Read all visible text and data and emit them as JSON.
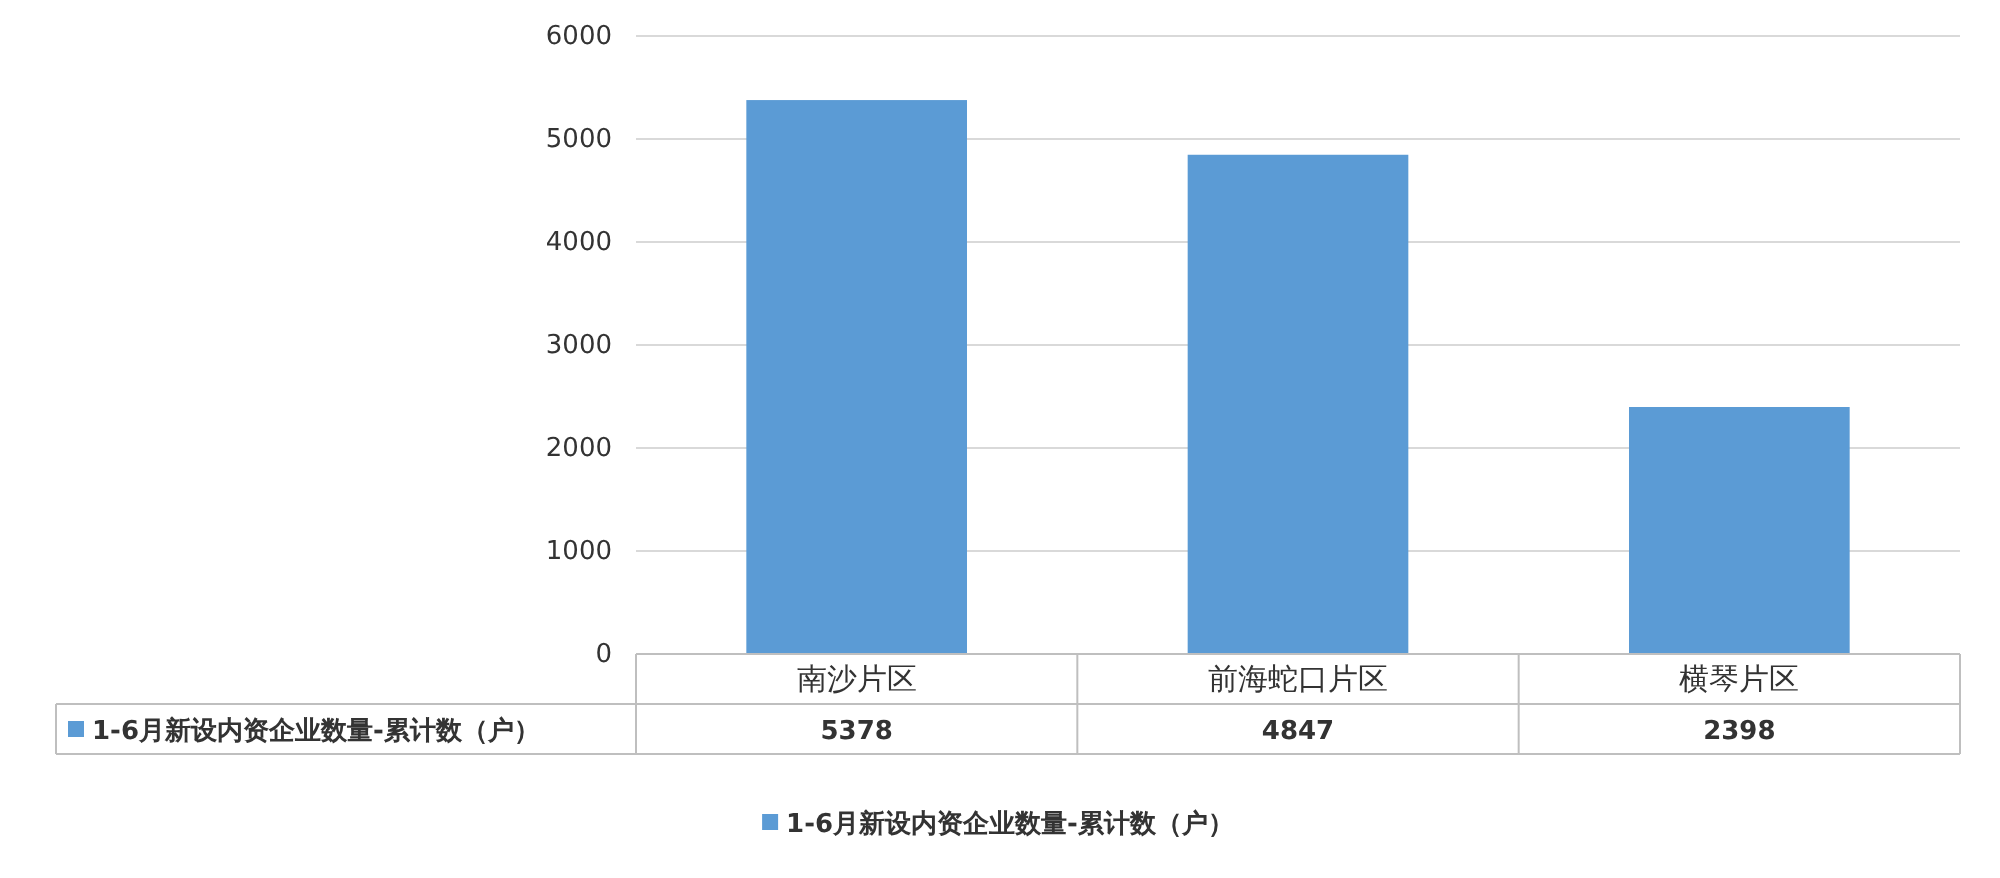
{
  "chart_data": {
    "type": "bar",
    "categories": [
      "南沙片区",
      "前海蛇口片区",
      "横琴片区"
    ],
    "series": [
      {
        "name": "1-6月新设内资企业数量-累计数（户）",
        "color": "#5b9bd5",
        "values": [
          5378,
          4847,
          2398
        ]
      }
    ],
    "ylim": [
      0,
      6000
    ],
    "yticks": [
      0,
      1000,
      2000,
      3000,
      4000,
      5000,
      6000
    ],
    "grid": "y",
    "legend": "bottom",
    "data_labels": true
  }
}
